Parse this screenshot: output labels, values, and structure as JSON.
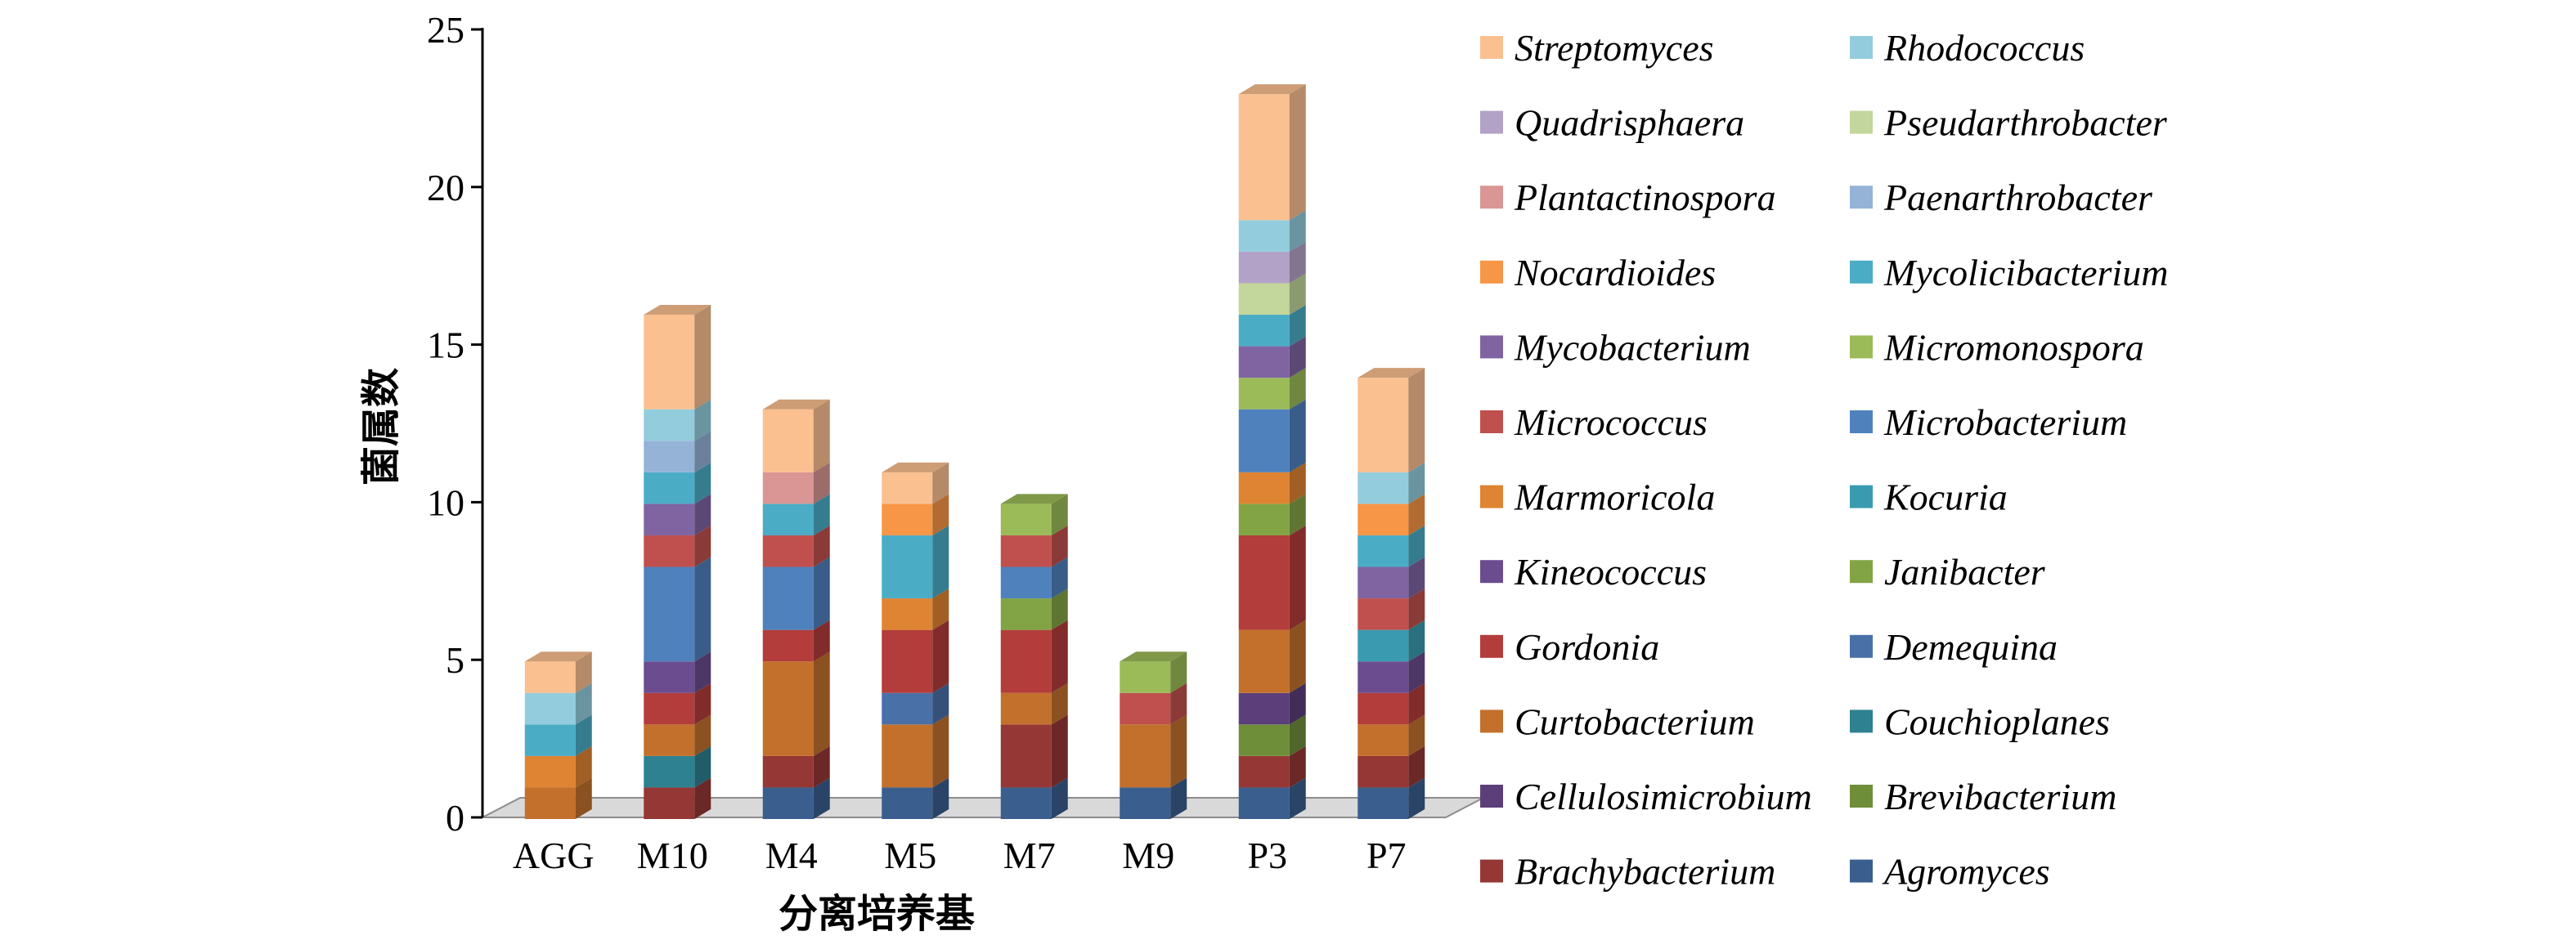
{
  "chart_data": {
    "type": "bar",
    "stacked": true,
    "three_d": true,
    "title": "",
    "xlabel": "分离培养基",
    "ylabel": "菌属数",
    "ylim": [
      0,
      25
    ],
    "yticks": [
      0,
      5,
      10,
      15,
      20,
      25
    ],
    "grid": false,
    "legend_position": "right",
    "categories": [
      "AGG",
      "M10",
      "M4",
      "M5",
      "M7",
      "M9",
      "P3",
      "P7"
    ],
    "series": [
      {
        "name": "Agromyces",
        "color": "#3a5f8f",
        "values": [
          0,
          0,
          1,
          1,
          1,
          1,
          1,
          1
        ]
      },
      {
        "name": "Brachybacterium",
        "color": "#953735",
        "values": [
          0,
          1,
          1,
          0,
          2,
          0,
          1,
          1
        ]
      },
      {
        "name": "Brevibacterium",
        "color": "#6f8e3a",
        "values": [
          0,
          0,
          0,
          0,
          0,
          0,
          1,
          0
        ]
      },
      {
        "name": "Cellulosimicrobium",
        "color": "#5c3f7a",
        "values": [
          0,
          0,
          0,
          0,
          0,
          0,
          1,
          0
        ]
      },
      {
        "name": "Couchioplanes",
        "color": "#2e8190",
        "values": [
          0,
          1,
          0,
          0,
          0,
          0,
          0,
          0
        ]
      },
      {
        "name": "Curtobacterium",
        "color": "#c2702c",
        "values": [
          1,
          1,
          3,
          2,
          1,
          2,
          2,
          1
        ]
      },
      {
        "name": "Demequina",
        "color": "#4a70a8",
        "values": [
          0,
          0,
          0,
          1,
          0,
          0,
          0,
          0
        ]
      },
      {
        "name": "Gordonia",
        "color": "#b33d3a",
        "values": [
          0,
          1,
          1,
          2,
          2,
          0,
          3,
          1
        ]
      },
      {
        "name": "Janibacter",
        "color": "#82a444",
        "values": [
          0,
          0,
          0,
          0,
          1,
          0,
          1,
          0
        ]
      },
      {
        "name": "Kineococcus",
        "color": "#6a4c8f",
        "values": [
          0,
          1,
          0,
          0,
          0,
          0,
          0,
          1
        ]
      },
      {
        "name": "Kocuria",
        "color": "#3a9bb0",
        "values": [
          0,
          0,
          0,
          0,
          0,
          0,
          0,
          1
        ]
      },
      {
        "name": "Marmoricola",
        "color": "#df8432",
        "values": [
          1,
          0,
          0,
          1,
          0,
          0,
          1,
          0
        ]
      },
      {
        "name": "Microbacterium",
        "color": "#4f81bd",
        "values": [
          0,
          3,
          2,
          0,
          1,
          0,
          2,
          0
        ]
      },
      {
        "name": "Micrococcus",
        "color": "#c0504d",
        "values": [
          0,
          1,
          1,
          0,
          1,
          1,
          0,
          1
        ]
      },
      {
        "name": "Micromonospora",
        "color": "#9bbb59",
        "values": [
          0,
          0,
          0,
          0,
          1,
          1,
          1,
          0
        ]
      },
      {
        "name": "Mycobacterium",
        "color": "#8064a2",
        "values": [
          0,
          1,
          0,
          0,
          0,
          0,
          1,
          1
        ]
      },
      {
        "name": "Mycolicibacterium",
        "color": "#4bacc6",
        "values": [
          1,
          1,
          1,
          2,
          0,
          0,
          1,
          1
        ]
      },
      {
        "name": "Nocardioides",
        "color": "#f79646",
        "values": [
          0,
          0,
          0,
          1,
          0,
          0,
          0,
          1
        ]
      },
      {
        "name": "Paenarthrobacter",
        "color": "#95b3d7",
        "values": [
          0,
          1,
          0,
          0,
          0,
          0,
          0,
          0
        ]
      },
      {
        "name": "Plantactinospora",
        "color": "#d99694",
        "values": [
          0,
          0,
          1,
          0,
          0,
          0,
          0,
          0
        ]
      },
      {
        "name": "Pseudarthrobacter",
        "color": "#c3d69b",
        "values": [
          0,
          0,
          0,
          0,
          0,
          0,
          1,
          0
        ]
      },
      {
        "name": "Quadrisphaera",
        "color": "#b3a2c7",
        "values": [
          0,
          0,
          0,
          0,
          0,
          0,
          1,
          0
        ]
      },
      {
        "name": "Rhodococcus",
        "color": "#93cddd",
        "values": [
          1,
          1,
          0,
          0,
          0,
          0,
          1,
          1
        ]
      },
      {
        "name": "Streptomyces",
        "color": "#fac090",
        "values": [
          1,
          3,
          2,
          1,
          0,
          0,
          4,
          3
        ]
      }
    ],
    "legend_order": [
      "Streptomyces",
      "Rhodococcus",
      "Quadrisphaera",
      "Pseudarthrobacter",
      "Plantactinospora",
      "Paenarthrobacter",
      "Nocardioides",
      "Mycolicibacterium",
      "Mycobacterium",
      "Micromonospora",
      "Micrococcus",
      "Microbacterium",
      "Marmoricola",
      "Kocuria",
      "Kineococcus",
      "Janibacter",
      "Gordonia",
      "Demequina",
      "Curtobacterium",
      "Couchioplanes",
      "Cellulosimicrobium",
      "Brevibacterium",
      "Brachybacterium",
      "Agromyces"
    ]
  }
}
